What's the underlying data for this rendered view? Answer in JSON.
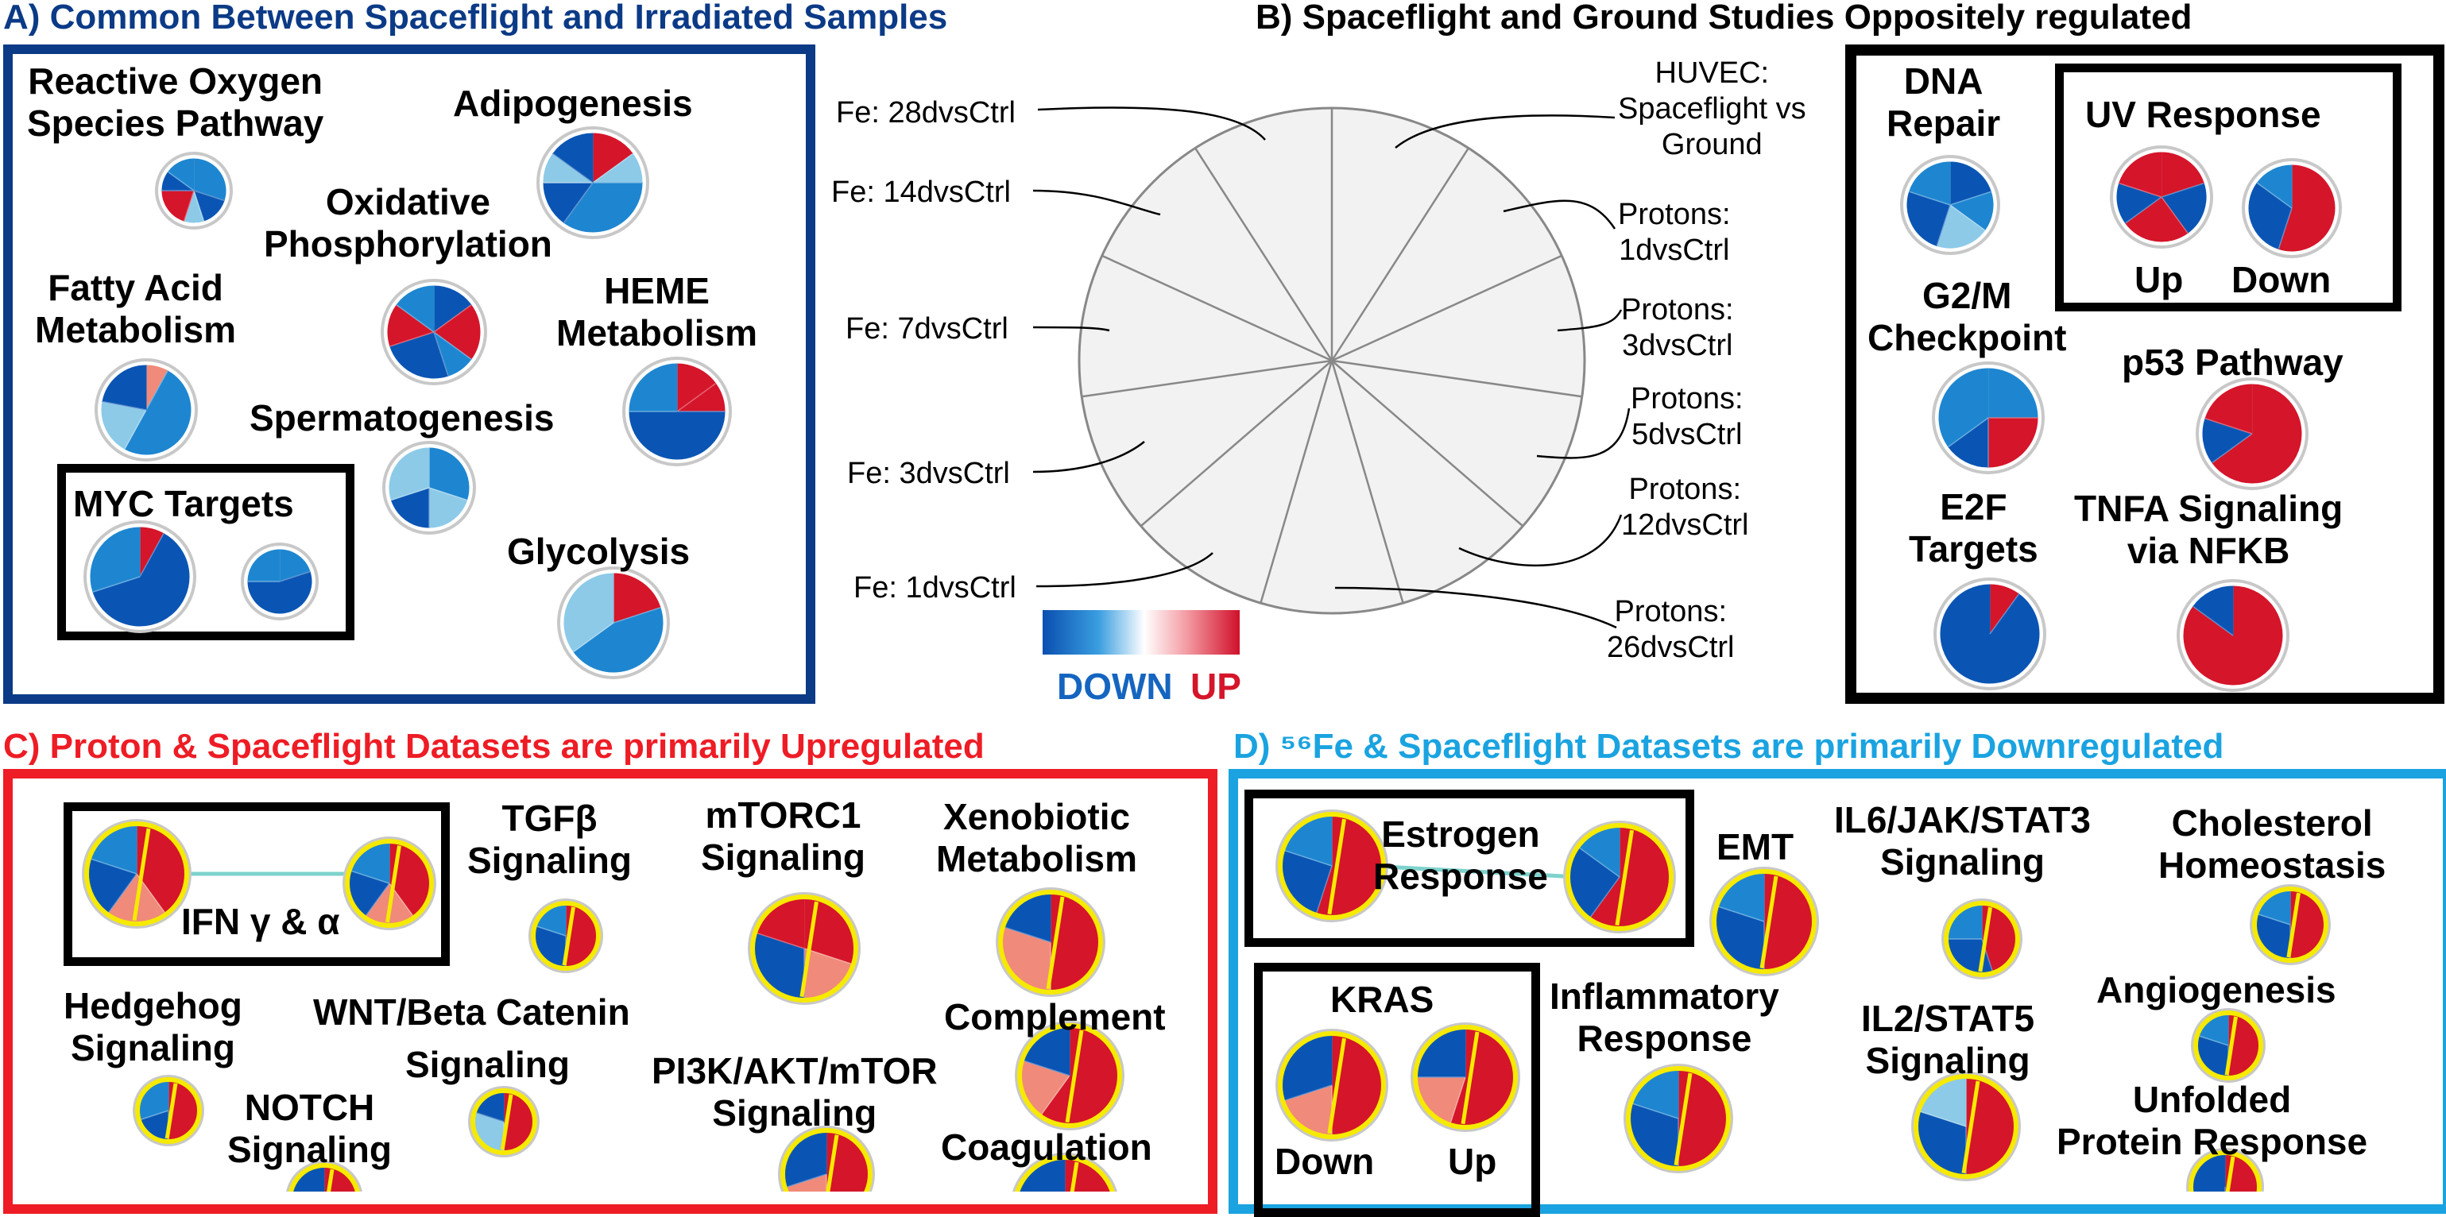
{
  "colors": {
    "panel_a": "#0b3a86",
    "panel_b": "#000000",
    "panel_c": "#ee1c25",
    "panel_d": "#1aa3e0",
    "down_dark": "#0a55b4",
    "down_mid": "#1e86d0",
    "down_light": "#8ccae8",
    "up_light": "#f08a7a",
    "up_dark": "#d5152a",
    "pie_border": "#c8c8c8",
    "pie_ring_yellow": "#f6ea00",
    "wheel_fill": "#f2f2f2"
  },
  "panel_a": {
    "title": "A) Common Between Spaceflight and Irradiated Samples",
    "labels": {
      "ros": "Reactive Oxygen\nSpecies Pathway",
      "adipo": "Adipogenesis",
      "oxphos": "Oxidative\nPhosphorylation",
      "fatty": "Fatty Acid\nMetabolism",
      "heme": "HEME\nMetabolism",
      "sperm": "Spermatogenesis",
      "myc": "MYC Targets",
      "glyc": "Glycolysis"
    }
  },
  "panel_b": {
    "title": "B) Spaceflight and Ground Studies Oppositely regulated",
    "wheel_labels": {
      "fe28": "Fe: 28dvsCtrl",
      "fe14": "Fe: 14dvsCtrl",
      "fe7": "Fe: 7dvsCtrl",
      "fe3": "Fe: 3dvsCtrl",
      "fe1": "Fe: 1dvsCtrl",
      "huvec": "HUVEC:\nSpaceflight vs\nGround",
      "p1": "Protons:\n1dvsCtrl",
      "p3": "Protons:\n3dvsCtrl",
      "p5": "Protons:\n5dvsCtrl",
      "p12": "Protons:\n12dvsCtrl",
      "p26": "Protons:\n26dvsCtrl"
    },
    "legend": {
      "down": "DOWN",
      "up": "UP"
    },
    "labels": {
      "dna": "DNA\nRepair",
      "uv": "UV Response",
      "uv_up": "Up",
      "uv_down": "Down",
      "g2m": "G2/M\nCheckpoint",
      "p53": "p53 Pathway",
      "e2f": "E2F\nTargets",
      "tnfa": "TNFA Signaling\nvia NFKB"
    }
  },
  "panel_c": {
    "title": "C) Proton & Spaceflight Datasets are primarily Upregulated",
    "labels": {
      "ifn": "IFN γ & α",
      "tgf": "TGFβ\nSignaling",
      "mtorc": "mTORC1\nSignaling",
      "xeno": "Xenobiotic\nMetabolism",
      "hedge": "Hedgehog\nSignaling",
      "wnt": "WNT/Beta Catenin",
      "wnt2": "Signaling",
      "complement": "Complement",
      "pi3k": "PI3K/AKT/mTOR\nSignaling",
      "notch": "NOTCH\nSignaling",
      "coag": "Coagulation"
    }
  },
  "panel_d": {
    "title": "D) ⁵⁶Fe & Spaceflight Datasets are primarily Downregulated",
    "labels": {
      "estrogen": "Estrogen\nResponse",
      "emt": "EMT",
      "il6": "IL6/JAK/STAT3\nSignaling",
      "chol": "Cholesterol\nHomeostasis",
      "kras": "KRAS",
      "kras_down": "Down",
      "kras_up": "Up",
      "inflam": "Inflammatory\nResponse",
      "il2": "IL2/STAT5\nSignaling",
      "angio": "Angiogenesis",
      "unfolded": "Unfolded\nProtein Response"
    }
  }
}
